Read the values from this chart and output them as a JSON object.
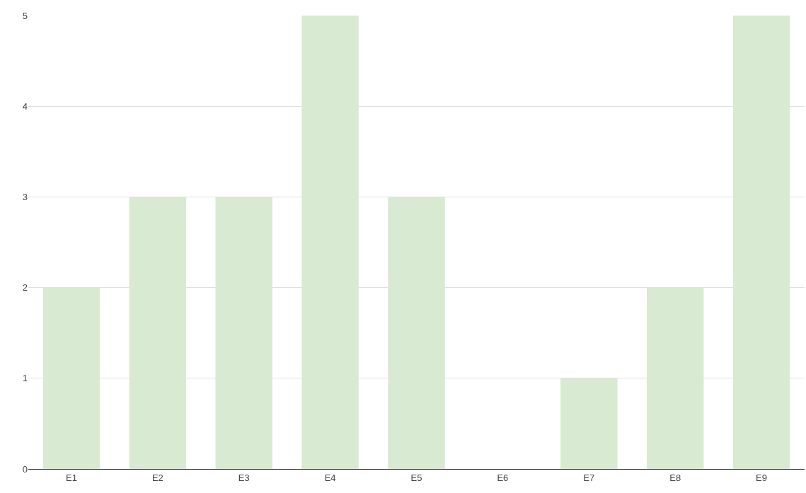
{
  "chart_data": {
    "type": "bar",
    "categories": [
      "E1",
      "E2",
      "E3",
      "E4",
      "E5",
      "E6",
      "E7",
      "E8",
      "E9"
    ],
    "values": [
      2,
      3,
      3,
      5,
      3,
      0,
      1,
      2,
      5
    ],
    "color": "#d9ead3",
    "ylim": [
      0,
      5
    ],
    "yticks": [
      0,
      1,
      2,
      3,
      4,
      5
    ],
    "grid": "y"
  }
}
